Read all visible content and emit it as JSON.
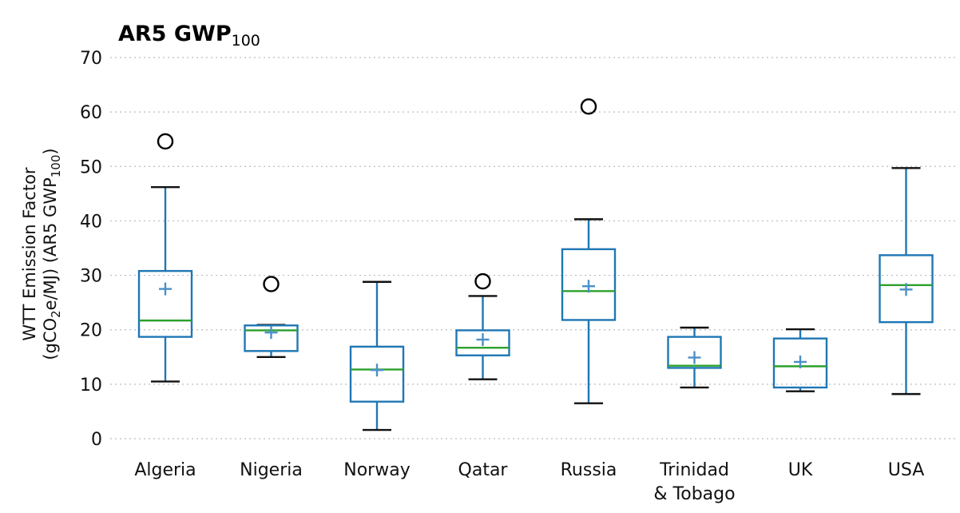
{
  "chart_data": {
    "type": "box",
    "title": "AR5 GWP",
    "title_subscript": "100",
    "ylabel_line1": "WTT Emission Factor",
    "ylabel_line2_parts": [
      "(gCO",
      "2",
      "e/MJ) (AR5 GWP",
      "100",
      ")"
    ],
    "ylim": [
      0,
      70
    ],
    "yticks": [
      0,
      10,
      20,
      30,
      40,
      50,
      60,
      70
    ],
    "grid": true,
    "categories": [
      {
        "label": [
          "Algeria"
        ],
        "whisker_low": 10.5,
        "q1": 18.7,
        "median": 21.7,
        "q3": 30.8,
        "whisker_high": 46.2,
        "mean": 27.5,
        "outliers": [
          54.6
        ]
      },
      {
        "label": [
          "Nigeria"
        ],
        "whisker_low": 15.0,
        "q1": 16.1,
        "median": 19.9,
        "q3": 20.8,
        "whisker_high": 20.9,
        "mean": 19.5,
        "outliers": [
          28.4
        ]
      },
      {
        "label": [
          "Norway"
        ],
        "whisker_low": 1.6,
        "q1": 6.8,
        "median": 12.7,
        "q3": 16.9,
        "whisker_high": 28.8,
        "mean": 12.6,
        "outliers": []
      },
      {
        "label": [
          "Qatar"
        ],
        "whisker_low": 10.9,
        "q1": 15.3,
        "median": 16.7,
        "q3": 19.9,
        "whisker_high": 26.2,
        "mean": 18.2,
        "outliers": [
          28.9
        ]
      },
      {
        "label": [
          "Russia"
        ],
        "whisker_low": 6.5,
        "q1": 21.8,
        "median": 27.1,
        "q3": 34.8,
        "whisker_high": 40.3,
        "mean": 28.0,
        "outliers": [
          61.0
        ]
      },
      {
        "label": [
          "Trinidad",
          "& Tobago"
        ],
        "whisker_low": 9.4,
        "q1": 13.0,
        "median": 13.4,
        "q3": 18.7,
        "whisker_high": 20.4,
        "mean": 14.9,
        "outliers": []
      },
      {
        "label": [
          "UK"
        ],
        "whisker_low": 8.7,
        "q1": 9.4,
        "median": 13.3,
        "q3": 18.4,
        "whisker_high": 20.1,
        "mean": 14.1,
        "outliers": []
      },
      {
        "label": [
          "USA"
        ],
        "whisker_low": 8.2,
        "q1": 21.4,
        "median": 28.2,
        "q3": 33.7,
        "whisker_high": 49.7,
        "mean": 27.4,
        "outliers": []
      }
    ],
    "colors": {
      "box": "#1f77b4",
      "median": "#2ca02c",
      "mean": "#4a90c8",
      "cap": "#111111",
      "outlier": "#000000",
      "grid": "#b8bcc2"
    }
  }
}
